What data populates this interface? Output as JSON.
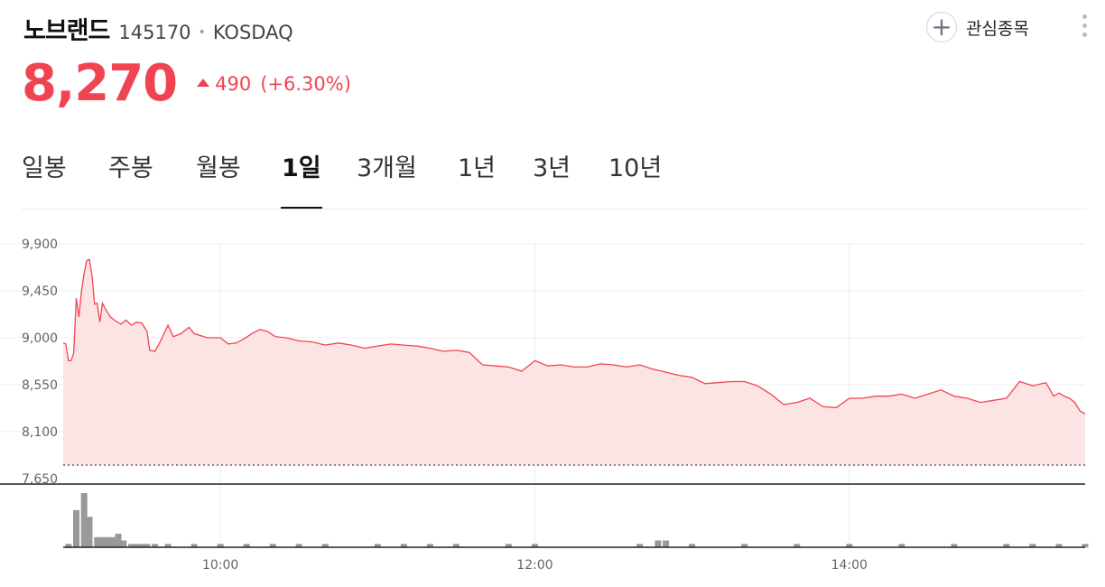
{
  "header": {
    "name": "노브랜드",
    "code": "145170",
    "separator": "•",
    "market": "KOSDAQ",
    "watch_label": "관심종목",
    "watch_plus": "+"
  },
  "quote": {
    "price": "8,270",
    "change": "490",
    "change_pct": "(+6.30%)",
    "direction": "up",
    "up_color": "#f04452"
  },
  "tabs": [
    {
      "label": "일봉",
      "active": false
    },
    {
      "label": "주봉",
      "active": false
    },
    {
      "label": "월봉",
      "active": false
    },
    {
      "label": "1일",
      "active": true
    },
    {
      "label": "3개월",
      "active": false
    },
    {
      "label": "1년",
      "active": false
    },
    {
      "label": "3년",
      "active": false
    },
    {
      "label": "10년",
      "active": false
    }
  ],
  "chart_data": {
    "type": "area",
    "x_unit": "time (HH:MM)",
    "y_ticks": [
      7650,
      8100,
      8550,
      9000,
      9450,
      9900
    ],
    "y_tick_labels": [
      "7,650",
      "8,100",
      "8,550",
      "9,000",
      "9,450",
      "9,900"
    ],
    "ylim": [
      7650,
      9900
    ],
    "xlim": [
      "09:00",
      "15:30"
    ],
    "x_ticks": [
      "10:00",
      "12:00",
      "14:00"
    ],
    "x_tick_labels": [
      "10:00",
      "12:00",
      "14:00"
    ],
    "reference_line": 7780,
    "grid": true,
    "line_color": "#f04452",
    "fill_color": "#fde4e4",
    "volume_color": "#999999",
    "series": [
      {
        "values": [
          [
            "09:00",
            8950
          ],
          [
            "09:01",
            8940
          ],
          [
            "09:02",
            8780
          ],
          [
            "09:03",
            8780
          ],
          [
            "09:04",
            8850
          ],
          [
            "09:05",
            9380
          ],
          [
            "09:06",
            9200
          ],
          [
            "09:07",
            9450
          ],
          [
            "09:08",
            9620
          ],
          [
            "09:09",
            9740
          ],
          [
            "09:10",
            9750
          ],
          [
            "09:11",
            9600
          ],
          [
            "09:12",
            9320
          ],
          [
            "09:13",
            9330
          ],
          [
            "09:14",
            9150
          ],
          [
            "09:15",
            9330
          ],
          [
            "09:16",
            9280
          ],
          [
            "09:17",
            9240
          ],
          [
            "09:18",
            9200
          ],
          [
            "09:20",
            9160
          ],
          [
            "09:22",
            9130
          ],
          [
            "09:24",
            9170
          ],
          [
            "09:26",
            9120
          ],
          [
            "09:28",
            9150
          ],
          [
            "09:30",
            9140
          ],
          [
            "09:32",
            9060
          ],
          [
            "09:33",
            8880
          ],
          [
            "09:35",
            8870
          ],
          [
            "09:37",
            8960
          ],
          [
            "09:40",
            9120
          ],
          [
            "09:42",
            9010
          ],
          [
            "09:45",
            9040
          ],
          [
            "09:48",
            9100
          ],
          [
            "09:50",
            9040
          ],
          [
            "09:55",
            9000
          ],
          [
            "10:00",
            9000
          ],
          [
            "10:03",
            8940
          ],
          [
            "10:06",
            8950
          ],
          [
            "10:09",
            8990
          ],
          [
            "10:12",
            9040
          ],
          [
            "10:15",
            9080
          ],
          [
            "10:18",
            9060
          ],
          [
            "10:21",
            9010
          ],
          [
            "10:25",
            9000
          ],
          [
            "10:30",
            8970
          ],
          [
            "10:35",
            8960
          ],
          [
            "10:40",
            8930
          ],
          [
            "10:45",
            8950
          ],
          [
            "10:50",
            8930
          ],
          [
            "10:55",
            8900
          ],
          [
            "11:00",
            8920
          ],
          [
            "11:05",
            8940
          ],
          [
            "11:10",
            8930
          ],
          [
            "11:15",
            8920
          ],
          [
            "11:20",
            8900
          ],
          [
            "11:25",
            8870
          ],
          [
            "11:30",
            8880
          ],
          [
            "11:35",
            8860
          ],
          [
            "11:40",
            8740
          ],
          [
            "11:45",
            8730
          ],
          [
            "11:50",
            8720
          ],
          [
            "11:55",
            8680
          ],
          [
            "12:00",
            8780
          ],
          [
            "12:05",
            8730
          ],
          [
            "12:10",
            8740
          ],
          [
            "12:15",
            8720
          ],
          [
            "12:20",
            8720
          ],
          [
            "12:25",
            8750
          ],
          [
            "12:30",
            8740
          ],
          [
            "12:35",
            8720
          ],
          [
            "12:40",
            8740
          ],
          [
            "12:45",
            8700
          ],
          [
            "12:50",
            8670
          ],
          [
            "12:55",
            8640
          ],
          [
            "13:00",
            8620
          ],
          [
            "13:05",
            8560
          ],
          [
            "13:10",
            8570
          ],
          [
            "13:15",
            8580
          ],
          [
            "13:20",
            8580
          ],
          [
            "13:25",
            8540
          ],
          [
            "13:30",
            8460
          ],
          [
            "13:35",
            8360
          ],
          [
            "13:40",
            8380
          ],
          [
            "13:45",
            8420
          ],
          [
            "13:50",
            8340
          ],
          [
            "13:55",
            8330
          ],
          [
            "14:00",
            8420
          ],
          [
            "14:05",
            8420
          ],
          [
            "14:10",
            8440
          ],
          [
            "14:15",
            8440
          ],
          [
            "14:20",
            8460
          ],
          [
            "14:25",
            8420
          ],
          [
            "14:30",
            8460
          ],
          [
            "14:35",
            8500
          ],
          [
            "14:40",
            8440
          ],
          [
            "14:45",
            8420
          ],
          [
            "14:50",
            8380
          ],
          [
            "14:55",
            8400
          ],
          [
            "15:00",
            8420
          ],
          [
            "15:05",
            8580
          ],
          [
            "15:10",
            8540
          ],
          [
            "15:15",
            8570
          ],
          [
            "15:18",
            8440
          ],
          [
            "15:20",
            8470
          ],
          [
            "15:22",
            8440
          ],
          [
            "15:24",
            8420
          ],
          [
            "15:26",
            8380
          ],
          [
            "15:28",
            8300
          ],
          [
            "15:30",
            8270
          ]
        ]
      }
    ],
    "volume_bars": [
      [
        "09:02",
        1
      ],
      [
        "09:05",
        11
      ],
      [
        "09:08",
        16
      ],
      [
        "09:10",
        9
      ],
      [
        "09:13",
        3
      ],
      [
        "09:15",
        3
      ],
      [
        "09:17",
        3
      ],
      [
        "09:19",
        3
      ],
      [
        "09:21",
        4
      ],
      [
        "09:23",
        2
      ],
      [
        "09:26",
        1
      ],
      [
        "09:28",
        1
      ],
      [
        "09:30",
        1
      ],
      [
        "09:32",
        1
      ],
      [
        "09:35",
        1
      ],
      [
        "09:40",
        1
      ],
      [
        "09:50",
        1
      ],
      [
        "10:00",
        1
      ],
      [
        "10:10",
        1
      ],
      [
        "10:20",
        1
      ],
      [
        "10:30",
        1
      ],
      [
        "10:40",
        1
      ],
      [
        "11:00",
        1
      ],
      [
        "11:10",
        1
      ],
      [
        "11:20",
        1
      ],
      [
        "11:30",
        1
      ],
      [
        "11:50",
        1
      ],
      [
        "12:00",
        1
      ],
      [
        "12:40",
        1
      ],
      [
        "12:47",
        2
      ],
      [
        "12:50",
        2
      ],
      [
        "13:00",
        1
      ],
      [
        "13:20",
        1
      ],
      [
        "13:40",
        1
      ],
      [
        "14:00",
        1
      ],
      [
        "14:20",
        1
      ],
      [
        "14:40",
        1
      ],
      [
        "15:00",
        1
      ],
      [
        "15:10",
        1
      ],
      [
        "15:20",
        1
      ],
      [
        "15:30",
        1
      ]
    ]
  }
}
